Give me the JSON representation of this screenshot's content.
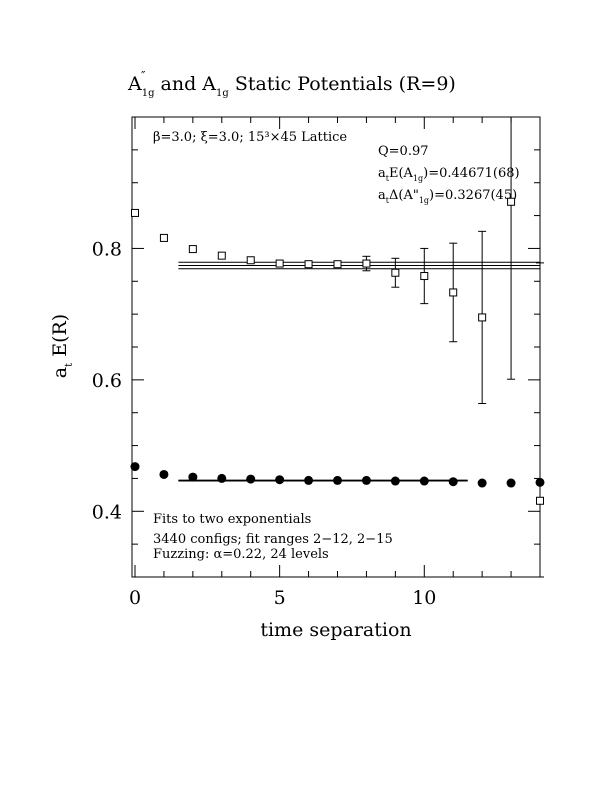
{
  "chart_data": {
    "type": "scatter",
    "title_main": "A",
    "title_sub1": "1g",
    "title_mid": " and A",
    "title_sub2": "1g",
    "title_end": " Static Potentials (R=9)",
    "xlabel": "time separation",
    "ylabel_main": "a",
    "ylabel_sub": "t",
    "ylabel_end": " E(R)",
    "xlim": [
      0,
      14
    ],
    "ylim": [
      0.3,
      1.0
    ],
    "x_ticks": [
      "0",
      "5",
      "10"
    ],
    "y_ticks": [
      "0.4",
      "0.6",
      "0.8"
    ],
    "x_tick_values": [
      0,
      5,
      10
    ],
    "y_tick_values": [
      0.4,
      0.6,
      0.8
    ],
    "annotations": {
      "lattice": "β=3.0; ξ=3.0; 15³×45 Lattice",
      "q": "Q=0.97",
      "energy_prefix": "a",
      "energy_sub1": "t",
      "energy_mid": "E(A",
      "energy_sub2": "1g",
      "energy_end": ")=0.44671(68)",
      "gap_prefix": "a",
      "gap_sub1": "t",
      "gap_mid": "Δ(A\"",
      "gap_sub2": "1g",
      "gap_end": ")=0.3267(45)",
      "fits": "Fits to two exponentials",
      "configs": "3440 configs; fit ranges 2−12, 2−15",
      "fuzzing": "Fuzzing: α=0.22, 24 levels"
    },
    "series": [
      {
        "marker": "open-square",
        "x": [
          0,
          1,
          2,
          3,
          4,
          5,
          6,
          7,
          8,
          9,
          10,
          11,
          12,
          13,
          14
        ],
        "y": [
          0.854,
          0.816,
          0.799,
          0.789,
          0.782,
          0.777,
          0.776,
          0.776,
          0.777,
          0.763,
          0.758,
          0.733,
          0.695,
          0.871,
          0.416
        ],
        "err": [
          0.001,
          0.001,
          0.001,
          0.002,
          0.002,
          0.003,
          0.004,
          0.006,
          0.011,
          0.022,
          0.042,
          0.075,
          0.131,
          0.27,
          0.362
        ],
        "fit_line": {
          "x_start": 1.5,
          "x_end": 14,
          "y": 0.774,
          "err": 0.005
        }
      },
      {
        "marker": "filled-circle",
        "x": [
          0,
          1,
          2,
          3,
          4,
          5,
          6,
          7,
          8,
          9,
          10,
          11,
          12,
          13,
          14
        ],
        "y": [
          0.468,
          0.456,
          0.452,
          0.45,
          0.449,
          0.448,
          0.447,
          0.447,
          0.447,
          0.446,
          0.446,
          0.445,
          0.443,
          0.443,
          0.444
        ],
        "fit_line": {
          "x_start": 1.5,
          "x_end": 11.5,
          "y": 0.4467,
          "err": 0.0007
        }
      }
    ]
  }
}
